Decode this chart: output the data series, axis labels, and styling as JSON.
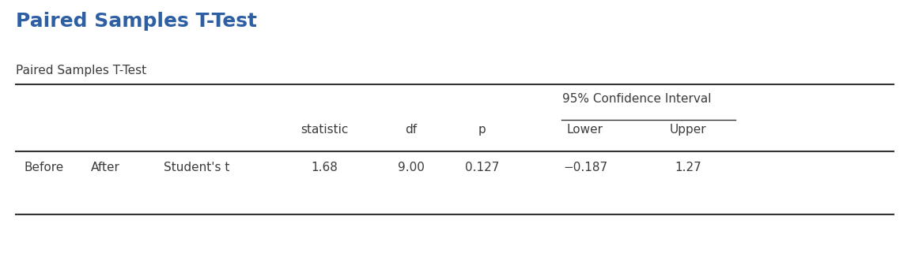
{
  "main_title": "Paired Samples T-Test",
  "main_title_color": "#2e5fa3",
  "main_title_fontsize": 18,
  "subtitle": "Paired Samples T-Test",
  "subtitle_fontsize": 11,
  "background_color": "#ffffff",
  "col_header_ci": "95% Confidence Interval",
  "col_header_stat": "statistic",
  "col_header_df": "df",
  "col_header_p": "p",
  "col_header_lower": "Lower",
  "col_header_upper": "Upper",
  "row_col1": "Before",
  "row_col2": "After",
  "row_col3": "Student's t",
  "row_stat": "1.68",
  "row_df": "9.00",
  "row_p": "0.127",
  "row_lower": "−0.187",
  "row_upper": "1.27",
  "header_fontsize": 11,
  "data_fontsize": 11,
  "text_color": "#3c3c3c",
  "line_color": "#333333"
}
